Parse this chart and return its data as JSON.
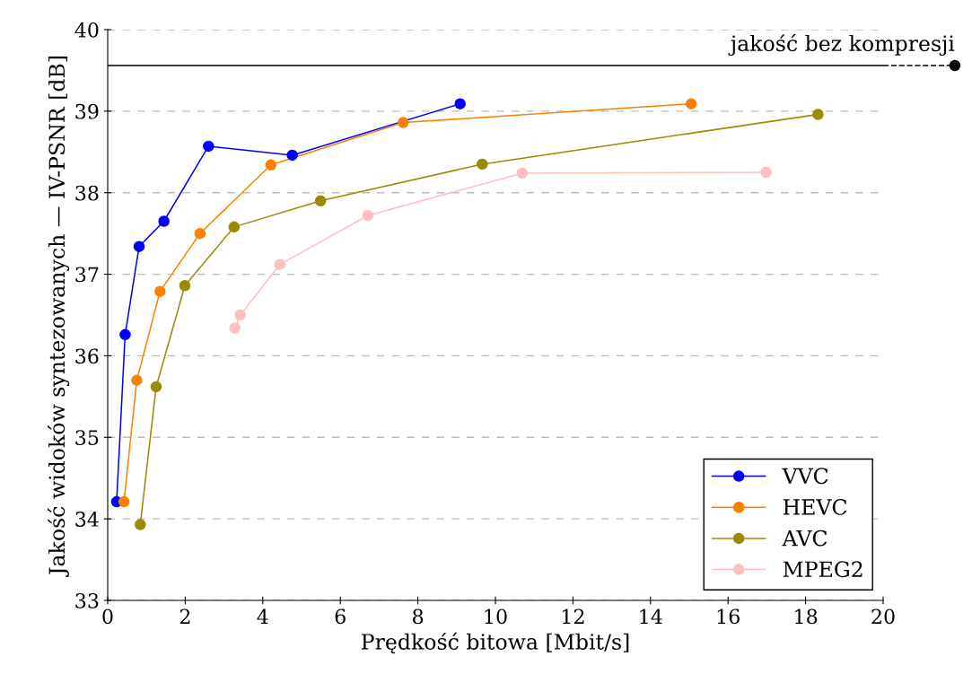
{
  "chart_data": {
    "type": "line",
    "xlabel": "Prędkość bitowa [Mbit/s]",
    "ylabel": "Jakość widoków syntezowanych — IV-PSNR [dB]",
    "xlim": [
      0,
      20
    ],
    "ylim": [
      33,
      40
    ],
    "xticks": [
      0,
      2,
      4,
      6,
      8,
      10,
      12,
      14,
      16,
      18,
      20
    ],
    "yticks": [
      33,
      34,
      35,
      36,
      37,
      38,
      39,
      40
    ],
    "grid": "y",
    "legend": "bottom right",
    "marker": "circle",
    "series": [
      {
        "name": "VVC",
        "color": "#0000ff",
        "x": [
          0.23,
          0.45,
          0.81,
          1.45,
          2.6,
          4.76,
          9.09
        ],
        "values": [
          34.21,
          36.26,
          37.34,
          37.65,
          38.57,
          38.46,
          39.09
        ]
      },
      {
        "name": "HEVC",
        "color": "#ff8000",
        "x": [
          0.42,
          0.75,
          1.35,
          2.38,
          4.21,
          7.62,
          15.05
        ],
        "values": [
          34.21,
          35.7,
          36.79,
          37.5,
          38.34,
          38.86,
          39.09
        ]
      },
      {
        "name": "AVC",
        "color": "#998c00",
        "x": [
          0.84,
          1.25,
          1.99,
          3.26,
          5.49,
          9.66,
          18.32
        ],
        "values": [
          33.93,
          35.62,
          36.86,
          37.58,
          37.9,
          38.35,
          38.96
        ]
      },
      {
        "name": "MPEG2",
        "color": "#ffbfbf",
        "x": [
          3.28,
          3.42,
          4.44,
          6.71,
          10.69,
          16.98
        ],
        "values": [
          36.34,
          36.5,
          37.12,
          37.72,
          38.24,
          38.25
        ]
      }
    ],
    "ref_lines": [
      {
        "axis": "y",
        "value": 39.56,
        "label": "jakość bez kompresji",
        "color": "#000000",
        "line_style": "solid"
      }
    ]
  }
}
